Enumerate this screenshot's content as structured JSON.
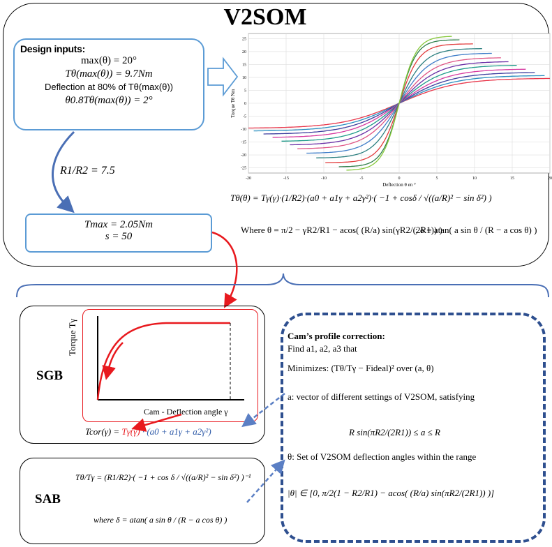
{
  "title": "V2SOM",
  "design_inputs": {
    "heading": "Design inputs:",
    "line1": "max(θ) = 20°",
    "line2": "Tθ(max(θ)) = 9.7Nm",
    "line3": "Deflection at 80% of Tθ(max(θ))",
    "line4": "θ0.8Tθ(max(θ)) = 2°"
  },
  "ratio": "R1/R2 = 7.5",
  "tmax_box": {
    "line1": "Tmax = 2.05Nm",
    "line2": "s = 50"
  },
  "formula_top": {
    "line1": "Tθ(θ) = Tγ(γ)·(1/R2)·(a0 + a1γ + a2γ²)·( −1 + cosδ / √((a/R)² − sin δ²) )",
    "line2": "Where θ = π/2 − γR2/R1 − acos( (R/a) sin(γR2/(2R1)) )",
    "line3": "; δ = atan( a sin θ / (R − a cos θ) )"
  },
  "sgb": {
    "label": "SGB",
    "y_axis": "Torque Tγ",
    "x_axis": "Cam - Deflection angle γ",
    "formula_prefix": "Tcor(γ) = ",
    "formula_red": "Tγ(γ)",
    "formula_blue": " · (a0 + a1γ + a2γ²)"
  },
  "sab": {
    "label": "SAB",
    "formula": "Tθ/Tγ = (R1/R2)·( −1 + cos δ / √((a/R)² − sin δ²) )⁻¹",
    "where": "where δ = atan( a sin θ / (R − a cos θ) )"
  },
  "cam": {
    "title": "Cam’s profile correction:",
    "find": "Find a1, a2, a3 that",
    "minimizes": "Minimizes: (Tθ/Tγ − Fideal)²  over (a, θ)",
    "a_desc": "a: vector of different settings of V2SOM, satisfying",
    "a_ineq": "R sin(πR2/(2R1)) ≤ a ≤ R",
    "theta_desc": "θ: Set of V2SOM deflection angles within the range",
    "theta_range": "|θ| ∈ [0, π/2(1 − R2/R1) − acos( (R/a) sin(πR2/(2R1)) )]"
  },
  "colors": {
    "blue": "#2e5aa8",
    "red": "#e8191e",
    "frame_blue": "#4a6fb5"
  },
  "chart_data": {
    "type": "line",
    "xlabel": "Deflection θ en °",
    "ylabel": "Torque Tθ Nm",
    "xlim": [
      -20,
      20
    ],
    "ylim": [
      -27,
      27
    ],
    "xticks": [
      -20,
      -15,
      -10,
      -5,
      0,
      5,
      10,
      15,
      20
    ],
    "yticks": [
      -25,
      -20,
      -15,
      -10,
      -5,
      0,
      5,
      10,
      15,
      20,
      25
    ],
    "grid": true,
    "series": [
      {
        "color": "#e8364a",
        "plateau": 9.7,
        "xmax": 20.0
      },
      {
        "color": "#2a8fc0",
        "plateau": 10.8,
        "xmax": 19.3
      },
      {
        "color": "#3d3d9e",
        "plateau": 12.0,
        "xmax": 18.0
      },
      {
        "color": "#d63aa0",
        "plateau": 13.3,
        "xmax": 16.8
      },
      {
        "color": "#1f9a8a",
        "plateau": 14.8,
        "xmax": 15.6
      },
      {
        "color": "#6a2fa6",
        "plateau": 16.2,
        "xmax": 14.5
      },
      {
        "color": "#e05585",
        "plateau": 17.7,
        "xmax": 13.5
      },
      {
        "color": "#3f7dc8",
        "plateau": 19.4,
        "xmax": 12.3
      },
      {
        "color": "#2b7f7f",
        "plateau": 21.2,
        "xmax": 11.0
      },
      {
        "color": "#e23b3b",
        "plateau": 23.0,
        "xmax": 9.8
      },
      {
        "color": "#2f7f4a",
        "plateau": 24.6,
        "xmax": 8.0
      },
      {
        "color": "#86c83a",
        "plateau": 26.0,
        "xmax": 7.0
      }
    ]
  }
}
